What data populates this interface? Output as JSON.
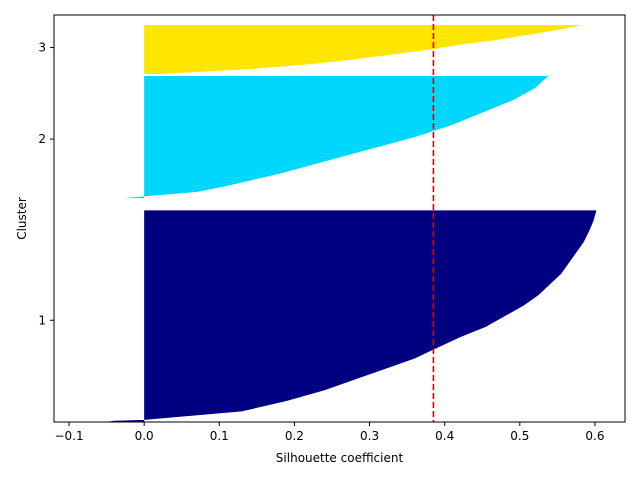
{
  "chart_data": {
    "type": "silhouette",
    "title": "",
    "xlabel": "Silhouette coefficient",
    "ylabel": "Cluster",
    "xlim": [
      -0.12,
      0.64
    ],
    "xticks": [
      -0.1,
      0.0,
      0.1,
      0.2,
      0.3,
      0.4,
      0.5,
      0.6
    ],
    "xtick_labels": [
      "−0.1",
      "0.0",
      "0.1",
      "0.2",
      "0.3",
      "0.4",
      "0.5",
      "0.6"
    ],
    "ytick_labels": [
      "1",
      "2",
      "3"
    ],
    "average_silhouette": 0.385,
    "average_line_color": "#dd0000",
    "clusters": [
      {
        "label": "1",
        "color": "#000080",
        "band": [
          0.0,
          0.52
        ],
        "tick_position": 0.25,
        "profile": [
          [
            0.0,
            -0.068
          ],
          [
            0.003,
            -0.045
          ],
          [
            0.006,
            -0.04
          ],
          [
            0.01,
            0.0
          ],
          [
            0.05,
            0.13
          ],
          [
            0.1,
            0.19
          ],
          [
            0.15,
            0.24
          ],
          [
            0.2,
            0.28
          ],
          [
            0.25,
            0.32
          ],
          [
            0.3,
            0.36
          ],
          [
            0.35,
            0.39
          ],
          [
            0.4,
            0.42
          ],
          [
            0.45,
            0.455
          ],
          [
            0.5,
            0.48
          ],
          [
            0.55,
            0.505
          ],
          [
            0.6,
            0.525
          ],
          [
            0.65,
            0.54
          ],
          [
            0.7,
            0.555
          ],
          [
            0.75,
            0.565
          ],
          [
            0.8,
            0.575
          ],
          [
            0.85,
            0.585
          ],
          [
            0.9,
            0.592
          ],
          [
            0.95,
            0.598
          ],
          [
            1.0,
            0.602
          ]
        ]
      },
      {
        "label": "2",
        "color": "#00d7ff",
        "band": [
          0.55,
          0.85
        ],
        "tick_position": 0.695,
        "profile": [
          [
            0.0,
            -0.028
          ],
          [
            0.015,
            0.0
          ],
          [
            0.05,
            0.07
          ],
          [
            0.1,
            0.11
          ],
          [
            0.2,
            0.18
          ],
          [
            0.3,
            0.24
          ],
          [
            0.4,
            0.3
          ],
          [
            0.5,
            0.36
          ],
          [
            0.6,
            0.41
          ],
          [
            0.7,
            0.45
          ],
          [
            0.8,
            0.49
          ],
          [
            0.9,
            0.52
          ],
          [
            1.0,
            0.538
          ]
        ]
      },
      {
        "label": "3",
        "color": "#ffe600",
        "band": [
          0.855,
          0.975
        ],
        "tick_position": 0.92,
        "profile": [
          [
            0.0,
            0.02
          ],
          [
            0.1,
            0.14
          ],
          [
            0.2,
            0.22
          ],
          [
            0.3,
            0.28
          ],
          [
            0.4,
            0.33
          ],
          [
            0.5,
            0.38
          ],
          [
            0.6,
            0.42
          ],
          [
            0.7,
            0.47
          ],
          [
            0.8,
            0.51
          ],
          [
            0.9,
            0.55
          ],
          [
            1.0,
            0.582
          ]
        ]
      }
    ]
  }
}
